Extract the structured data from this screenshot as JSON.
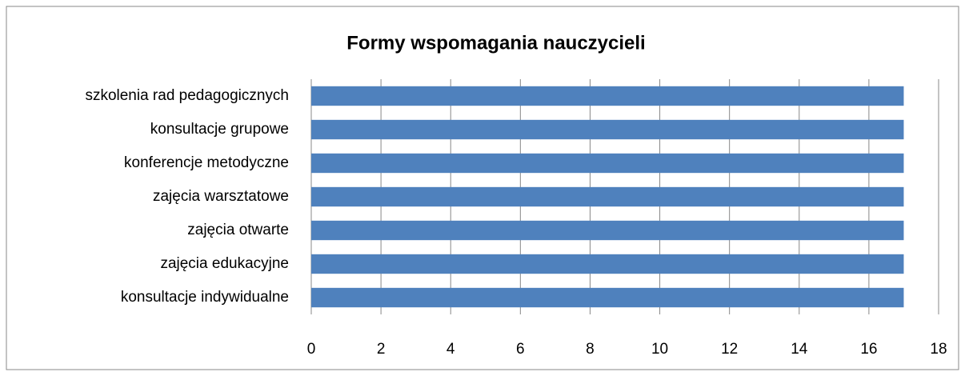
{
  "chart_data": {
    "type": "bar",
    "orientation": "horizontal",
    "title": "Formy wspomagania nauczycieli",
    "categories": [
      "szkolenia rad pedagogicznych",
      "konsultacje grupowe",
      "konferencje metodyczne",
      "zajęcia warsztatowe",
      "zajęcia otwarte",
      "zajęcia edukacyjne",
      "konsultacje indywidualne"
    ],
    "values": [
      17,
      17,
      17,
      17,
      17,
      17,
      17
    ],
    "color": "#4f81bd",
    "xlim": [
      0,
      18
    ],
    "xticks": [
      0,
      2,
      4,
      6,
      8,
      10,
      12,
      14,
      16,
      18
    ],
    "grid": true
  }
}
